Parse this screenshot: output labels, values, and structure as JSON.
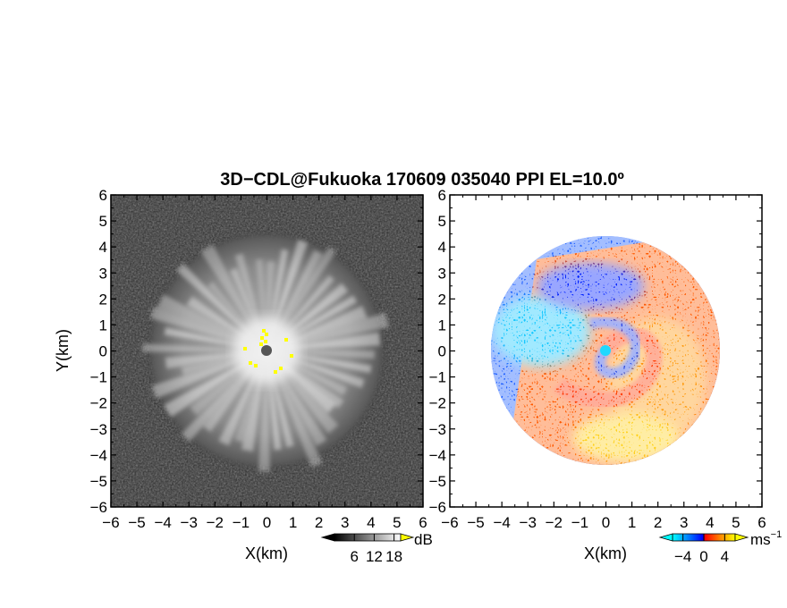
{
  "title": "3D−CDL@Fukuoka 170609 035040 PPI EL=10.0º",
  "chart_data": [
    {
      "type": "heatmap",
      "panel": "left",
      "quantity": "signal",
      "xlabel": "X(km)",
      "ylabel": "Y(km)",
      "xlim": [
        -6,
        6
      ],
      "ylim": [
        -6,
        6
      ],
      "xticks": [
        "−6",
        "−5",
        "−4",
        "−3",
        "−2",
        "−1",
        "0",
        "1",
        "2",
        "3",
        "4",
        "5",
        "6"
      ],
      "yticks": [
        "6",
        "5",
        "4",
        "3",
        "2",
        "1",
        "0",
        "−1",
        "−2",
        "−3",
        "−4",
        "−5",
        "−6"
      ],
      "echo_radius_km": 4.4,
      "colorscale": "grayscale",
      "colorbar": {
        "unit": "dB",
        "ticks": [
          "6",
          "12",
          "18"
        ],
        "range": [
          0,
          20
        ]
      }
    },
    {
      "type": "heatmap",
      "panel": "right",
      "quantity": "radial velocity",
      "xlabel": "X(km)",
      "ylabel": "",
      "xlim": [
        -6,
        6
      ],
      "ylim": [
        -6,
        6
      ],
      "xticks": [
        "−6",
        "−5",
        "−4",
        "−3",
        "−2",
        "−1",
        "0",
        "1",
        "2",
        "3",
        "4",
        "5",
        "6"
      ],
      "yticks": [
        "6",
        "5",
        "4",
        "3",
        "2",
        "1",
        "0",
        "−1",
        "−2",
        "−3",
        "−4",
        "−5",
        "−6"
      ],
      "echo_radius_km": 4.4,
      "colorscale": "cyan-blue-red-orange-yellow",
      "colorbar": {
        "unit": "ms",
        "unit_exp": "−1",
        "ticks": [
          "−4",
          "0",
          "4"
        ],
        "range": [
          -6,
          6
        ]
      }
    }
  ]
}
